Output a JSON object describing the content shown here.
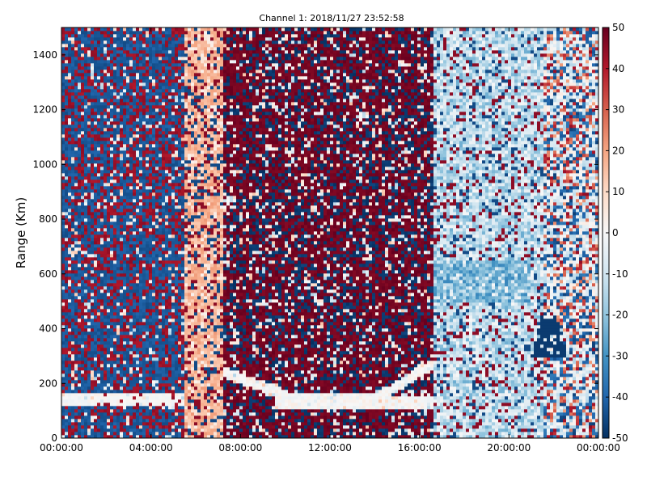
{
  "chart_data": {
    "type": "heatmap",
    "title": "Channel 1: 2018/11/27 23:52:58",
    "xlabel": "",
    "ylabel": "Range (Km)",
    "x_ticks": [
      "00:00:00",
      "04:00:00",
      "08:00:00",
      "12:00:00",
      "16:00:00",
      "20:00:00",
      "00:00:00"
    ],
    "x_range_hours": [
      0,
      24
    ],
    "y_ticks": [
      0,
      200,
      400,
      600,
      800,
      1000,
      1200,
      1400
    ],
    "ylim": [
      0,
      1500
    ],
    "colorbar": {
      "ticks": [
        50,
        40,
        30,
        20,
        10,
        0,
        -10,
        -20,
        -30,
        -40,
        -50
      ],
      "vmin": -50,
      "vmax": 50,
      "colormap": "RdBu_r",
      "color_stops": [
        "#053061",
        "#2166ac",
        "#4393c3",
        "#92c5de",
        "#d1e5f0",
        "#f7f7f7",
        "#fddbc7",
        "#f4a582",
        "#d6604d",
        "#b2182b",
        "#67001f"
      ]
    },
    "regions": [
      {
        "name": "noise-blue-dominant",
        "x": [
          0,
          5.5
        ],
        "y": [
          0,
          1500
        ],
        "value": -45
      },
      {
        "name": "salmon-band",
        "x": [
          5.5,
          7.3
        ],
        "y": [
          0,
          1500
        ],
        "value": 15
      },
      {
        "name": "noise-red-dominant",
        "x": [
          7.3,
          16.6
        ],
        "y": [
          0,
          1500
        ],
        "value": 45
      },
      {
        "name": "pale-blue-region",
        "x": [
          16.6,
          24
        ],
        "y": [
          0,
          1500
        ],
        "value": -10
      },
      {
        "name": "blue-blob",
        "x": [
          16.6,
          21.0
        ],
        "y": [
          500,
          650
        ],
        "value": -20
      },
      {
        "name": "dark-blue-wedge",
        "x": [
          21.0,
          22.6
        ],
        "y": [
          300,
          450
        ],
        "value": -48
      },
      {
        "name": "white-trace-left",
        "x": [
          0,
          5.5
        ],
        "y": [
          120,
          160
        ],
        "value": 0
      },
      {
        "name": "white-trace-middle",
        "x": [
          7.3,
          16.6
        ],
        "y": [
          100,
          300
        ],
        "value": 0
      }
    ]
  }
}
